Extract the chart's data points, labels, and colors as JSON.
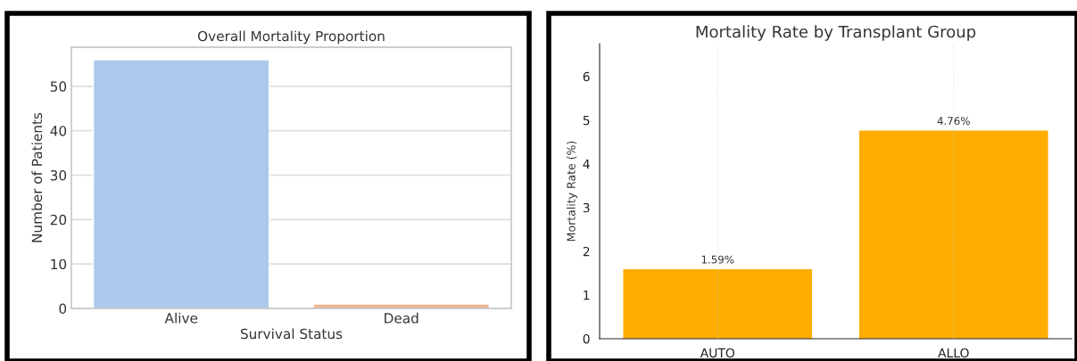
{
  "chart_data": [
    {
      "type": "bar",
      "title": "Overall Mortality Proportion",
      "xlabel": "Survival Status",
      "ylabel": "Number of Patients",
      "categories": [
        "Alive",
        "Dead"
      ],
      "values": [
        56,
        1
      ],
      "colors": [
        "#abc9ea",
        "#f2b58e"
      ],
      "ylim": [
        0,
        58.8
      ],
      "yticks": [
        0,
        10,
        20,
        30,
        40,
        50
      ],
      "grid": "y"
    },
    {
      "type": "bar",
      "title": "Mortality Rate by Transplant Group",
      "ylabel": "Mortality Rate (%)",
      "categories": [
        "AUTO",
        "ALLO"
      ],
      "values": [
        1.59,
        4.76
      ],
      "color": "#ffad00",
      "value_labels": [
        "1.59%",
        "4.76%"
      ],
      "ylim": [
        0,
        6.75
      ],
      "yticks": [
        0,
        1,
        2,
        3,
        4,
        5,
        6
      ],
      "grid": "x"
    }
  ]
}
